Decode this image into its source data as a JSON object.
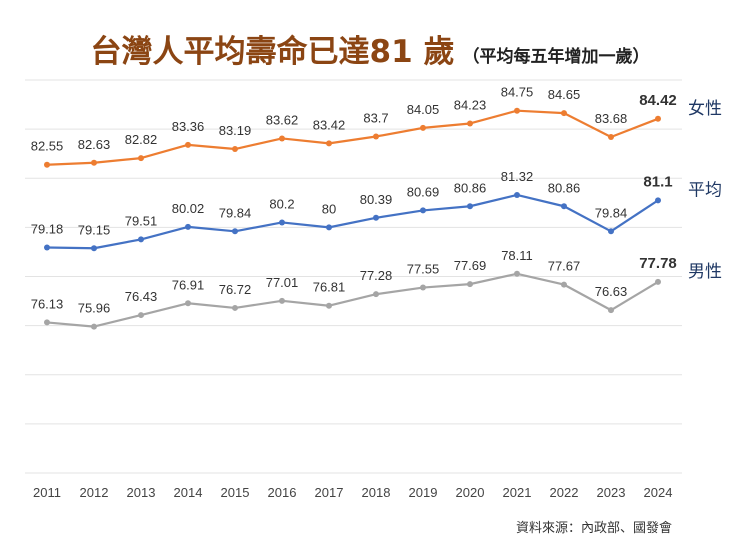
{
  "title": "台灣人平均壽命已達81 歲",
  "subtitle": "（平均每五年增加一歲）",
  "source": "資料來源：內政部、國發會",
  "chart_data": {
    "type": "line",
    "title": "台灣人平均壽命已達81 歲",
    "subtitle": "（平均每五年增加一歲）",
    "x": [
      "2011",
      "2012",
      "2013",
      "2014",
      "2015",
      "2016",
      "2017",
      "2018",
      "2019",
      "2020",
      "2021",
      "2022",
      "2023",
      "2024"
    ],
    "ylim": [
      70,
      86
    ],
    "grid": true,
    "y_axis_labels_shown": false,
    "legend_placement": "right (labels at line ends)",
    "series": [
      {
        "name": "女性",
        "color": "#ED7D31",
        "values": [
          82.55,
          82.63,
          82.82,
          83.36,
          83.19,
          83.62,
          83.42,
          83.7,
          84.05,
          84.23,
          84.75,
          84.65,
          83.68,
          84.42
        ]
      },
      {
        "name": "平均",
        "color": "#4472C4",
        "values": [
          79.18,
          79.15,
          79.51,
          80.02,
          79.84,
          80.2,
          80,
          80.39,
          80.69,
          80.86,
          81.32,
          80.86,
          79.84,
          81.1
        ]
      },
      {
        "name": "男性",
        "color": "#A5A5A5",
        "values": [
          76.13,
          75.96,
          76.43,
          76.91,
          76.72,
          77.01,
          76.81,
          77.28,
          77.55,
          77.69,
          78.11,
          77.67,
          76.63,
          77.78
        ]
      }
    ],
    "series_label_color": "#1F3864",
    "title_color": "#8B4513"
  }
}
